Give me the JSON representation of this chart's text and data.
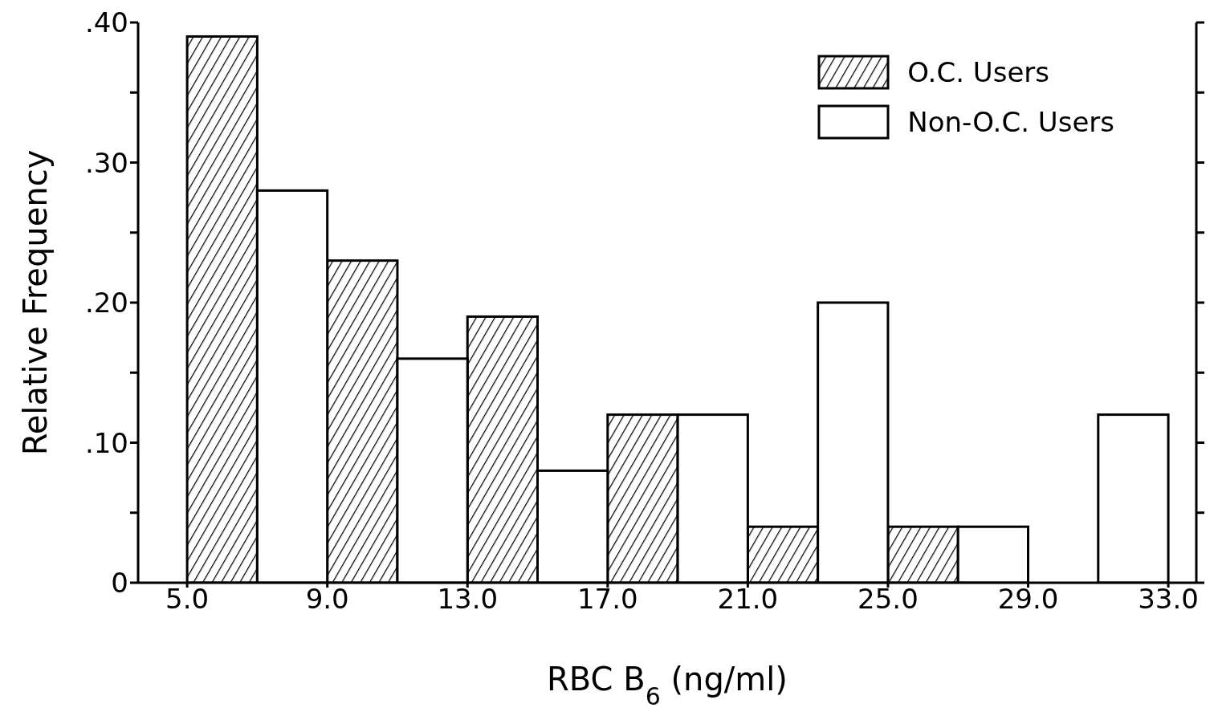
{
  "chart_data": {
    "type": "bar",
    "xlabel": "RBC B$_{6}$ (ng/ml)",
    "ylabel": "Relative Frequency",
    "series": [
      {
        "name": "O.C. Users",
        "color": "#000000",
        "x": [
          6,
          10,
          14,
          18,
          22,
          26
        ],
        "values": [
          0.39,
          0.23,
          0.19,
          0.12,
          0.04,
          0.04
        ]
      },
      {
        "name": "Non-O.C. Users",
        "color": "#ffffff",
        "x": [
          8,
          12,
          16,
          20,
          24,
          28,
          32
        ],
        "values": [
          0.28,
          0.16,
          0.08,
          0.12,
          0.2,
          0.04,
          0.12
        ]
      }
    ],
    "xlim": [
      3.6,
      33.8
    ],
    "xticks": [
      {
        "value": 5,
        "label": "5.0"
      },
      {
        "value": 9,
        "label": "9.0"
      },
      {
        "value": 13,
        "label": "13.0"
      },
      {
        "value": 17,
        "label": "17.0"
      },
      {
        "value": 21,
        "label": "21.0"
      },
      {
        "value": 25,
        "label": "25.0"
      },
      {
        "value": 29,
        "label": "29.0"
      },
      {
        "value": 33,
        "label": "33.0"
      }
    ],
    "ylim": [
      0,
      0.4
    ],
    "yticks": [
      0,
      {
        "value": 0.05,
        "label": null
      },
      {
        "value": 0.1,
        "label": ".10"
      },
      {
        "value": 0.15,
        "label": null
      },
      {
        "value": 0.2,
        "label": ".20"
      },
      {
        "value": 0.25,
        "label": null
      },
      {
        "value": 0.3,
        "label": ".30"
      },
      {
        "value": 0.35,
        "label": null
      },
      {
        "value": 0.4,
        "label": ".40"
      }
    ],
    "legend": "top right",
    "grid": false
  }
}
